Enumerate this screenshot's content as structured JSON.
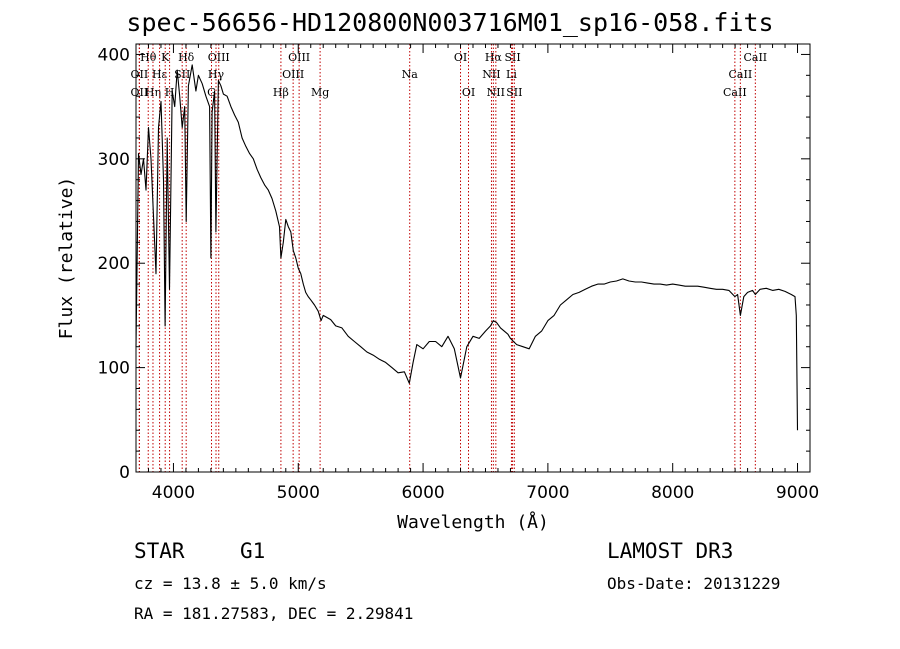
{
  "figure": {
    "title": "spec-56656-HD120800N003716M01_sp16-058.fits",
    "class_label": "STAR",
    "subclass_label": "G1",
    "survey": "LAMOST DR3",
    "cz": "cz = 13.8 ± 5.0 km/s",
    "obs_date": "Obs-Date: 20131229",
    "coords": "RA = 181.27583, DEC =   2.29841"
  },
  "chart_data": {
    "type": "line",
    "title": "spec-56656-HD120800N003716M01_sp16-058.fits",
    "xlabel": "Wavelength (Å)",
    "ylabel": "Flux (relative)",
    "xlim": [
      3700,
      9100
    ],
    "ylim": [
      0,
      410
    ],
    "xticks": [
      4000,
      5000,
      6000,
      7000,
      8000,
      9000
    ],
    "yticks": [
      0,
      100,
      200,
      300,
      400
    ],
    "grid": false,
    "series": [
      {
        "name": "flux",
        "x": [
          3700,
          3720,
          3740,
          3760,
          3780,
          3800,
          3820,
          3840,
          3860,
          3880,
          3900,
          3920,
          3933,
          3950,
          3968,
          3990,
          4010,
          4030,
          4050,
          4070,
          4090,
          4102,
          4120,
          4150,
          4180,
          4200,
          4230,
          4260,
          4290,
          4300,
          4310,
          4330,
          4340,
          4360,
          4380,
          4400,
          4430,
          4460,
          4490,
          4520,
          4550,
          4580,
          4610,
          4640,
          4670,
          4700,
          4730,
          4760,
          4790,
          4820,
          4850,
          4861,
          4880,
          4900,
          4920,
          4940,
          4960,
          4980,
          5000,
          5020,
          5040,
          5060,
          5080,
          5100,
          5130,
          5160,
          5183,
          5200,
          5230,
          5260,
          5300,
          5350,
          5400,
          5450,
          5500,
          5550,
          5600,
          5650,
          5700,
          5750,
          5800,
          5850,
          5890,
          5920,
          5950,
          6000,
          6050,
          6100,
          6150,
          6200,
          6250,
          6300,
          6350,
          6400,
          6450,
          6500,
          6540,
          6563,
          6590,
          6620,
          6650,
          6680,
          6700,
          6750,
          6800,
          6850,
          6900,
          6950,
          7000,
          7050,
          7100,
          7150,
          7200,
          7250,
          7300,
          7350,
          7400,
          7450,
          7500,
          7550,
          7600,
          7650,
          7700,
          7750,
          7800,
          7850,
          7900,
          7950,
          8000,
          8050,
          8100,
          8150,
          8200,
          8250,
          8300,
          8350,
          8400,
          8450,
          8498,
          8520,
          8542,
          8570,
          8600,
          8640,
          8662,
          8700,
          8750,
          8800,
          8850,
          8900,
          8950,
          8980,
          8990,
          9000
        ],
        "y": [
          120,
          305,
          285,
          300,
          270,
          330,
          300,
          245,
          190,
          330,
          355,
          280,
          140,
          320,
          175,
          365,
          350,
          385,
          360,
          330,
          350,
          240,
          370,
          390,
          365,
          380,
          372,
          360,
          350,
          205,
          345,
          365,
          230,
          375,
          370,
          362,
          360,
          350,
          342,
          335,
          320,
          312,
          305,
          300,
          290,
          282,
          275,
          270,
          262,
          250,
          235,
          205,
          220,
          242,
          235,
          230,
          212,
          205,
          195,
          190,
          180,
          172,
          168,
          165,
          160,
          154,
          145,
          150,
          148,
          146,
          140,
          138,
          130,
          125,
          120,
          115,
          112,
          108,
          105,
          100,
          95,
          96,
          85,
          105,
          122,
          118,
          125,
          125,
          120,
          130,
          118,
          90,
          120,
          130,
          128,
          135,
          140,
          145,
          143,
          138,
          135,
          132,
          128,
          122,
          120,
          118,
          130,
          135,
          145,
          150,
          160,
          165,
          170,
          172,
          175,
          178,
          180,
          180,
          182,
          183,
          185,
          183,
          182,
          182,
          181,
          180,
          180,
          179,
          180,
          179,
          178,
          178,
          178,
          177,
          176,
          175,
          175,
          174,
          168,
          170,
          150,
          168,
          172,
          174,
          170,
          175,
          176,
          174,
          175,
          173,
          170,
          168,
          150,
          40
        ]
      }
    ],
    "spectral_lines": [
      {
        "name": "Hθ",
        "x": 3798,
        "row": 1
      },
      {
        "name": "OII",
        "x": 3727,
        "row": 2
      },
      {
        "name": "OII",
        "x": 3727,
        "row": 3
      },
      {
        "name": "Hη",
        "x": 3836,
        "row": 3
      },
      {
        "name": "Hε",
        "x": 3889,
        "row": 2
      },
      {
        "name": "K",
        "x": 3934,
        "row": 1
      },
      {
        "name": "H",
        "x": 3969,
        "row": 3
      },
      {
        "name": "SII",
        "x": 4070,
        "row": 2
      },
      {
        "name": "Hδ",
        "x": 4102,
        "row": 1
      },
      {
        "name": "OIII",
        "x": 4363,
        "row": 1
      },
      {
        "name": "Hγ",
        "x": 4341,
        "row": 2
      },
      {
        "name": "G",
        "x": 4305,
        "row": 3
      },
      {
        "name": "Hβ",
        "x": 4861,
        "row": 3
      },
      {
        "name": "OIII",
        "x": 5007,
        "row": 1
      },
      {
        "name": "OIII",
        "x": 4959,
        "row": 2
      },
      {
        "name": "Mg",
        "x": 5175,
        "row": 3
      },
      {
        "name": "Na",
        "x": 5893,
        "row": 2
      },
      {
        "name": "OI",
        "x": 6300,
        "row": 1
      },
      {
        "name": "OI",
        "x": 6364,
        "row": 3
      },
      {
        "name": "Hα",
        "x": 6563,
        "row": 1
      },
      {
        "name": "NII",
        "x": 6548,
        "row": 2
      },
      {
        "name": "NII",
        "x": 6583,
        "row": 3
      },
      {
        "name": "SII",
        "x": 6717,
        "row": 1
      },
      {
        "name": "Li",
        "x": 6708,
        "row": 2
      },
      {
        "name": "SII",
        "x": 6731,
        "row": 3
      },
      {
        "name": "CaII",
        "x": 8662,
        "row": 1
      },
      {
        "name": "CaII",
        "x": 8542,
        "row": 2
      },
      {
        "name": "CaII",
        "x": 8498,
        "row": 3
      }
    ]
  }
}
